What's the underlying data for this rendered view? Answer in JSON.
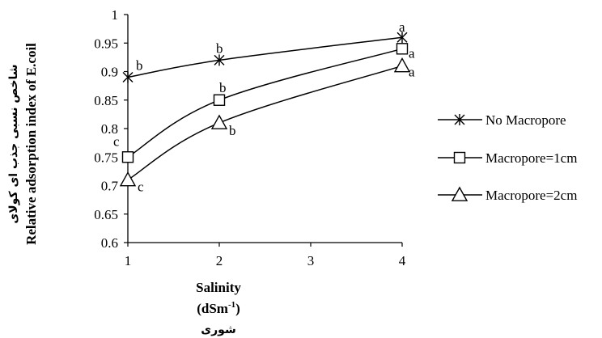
{
  "chart_data": {
    "type": "line",
    "x": [
      1,
      2,
      4
    ],
    "xticks": [
      "1",
      "2",
      "3",
      "4"
    ],
    "xlim": [
      1,
      4
    ],
    "ylim": [
      0.6,
      1
    ],
    "yticks": [
      "0.6",
      "0.65",
      "0.7",
      "0.75",
      "0.8",
      "0.85",
      "0.9",
      "0.95",
      "1"
    ],
    "xlabel": "Salinity",
    "xlabel_unit": "(dSm",
    "xlabel_unit_sup": "-1",
    "xlabel_unit_close": ")",
    "xlabel_fa": "شوری",
    "ylabel": "Relative adsorption index of E.coil",
    "ylabel_fa": "شاخص نسبی جذب ای کولای",
    "grid": false,
    "legend_position": "right",
    "series": [
      {
        "name": "No Macropore",
        "marker": "asterisk",
        "values": [
          0.89,
          0.92,
          0.96
        ],
        "letters": [
          "b",
          "b",
          "a"
        ]
      },
      {
        "name": "Macropore=1cm",
        "marker": "square",
        "values": [
          0.75,
          0.85,
          0.94
        ],
        "letters": [
          "c",
          "b",
          "a"
        ]
      },
      {
        "name": "Macropore=2cm",
        "marker": "triangle",
        "values": [
          0.71,
          0.81,
          0.91
        ],
        "letters": [
          "c",
          "b",
          "a"
        ]
      }
    ]
  }
}
